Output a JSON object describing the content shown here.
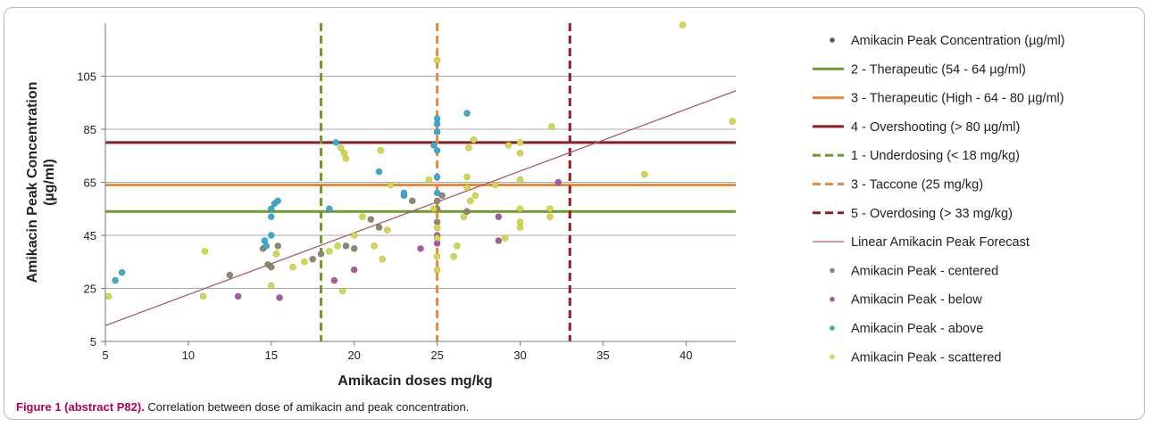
{
  "caption": {
    "label": "Figure 1 (abstract P82).",
    "text": "Correlation between dose of amikacin and peak concentration."
  },
  "chart_data": {
    "type": "scatter",
    "title": "",
    "xlabel": "Amikacin doses mg/kg",
    "ylabel": "Amikacin Peak Concentration (µg/ml)",
    "xlim": [
      5,
      43
    ],
    "ylim": [
      5,
      125
    ],
    "x_ticks": [
      5,
      10,
      15,
      20,
      25,
      30,
      35,
      40
    ],
    "y_ticks": [
      5,
      25,
      45,
      65,
      85,
      105
    ],
    "grid": "horizontal",
    "legend_position": "right",
    "legend": [
      {
        "name": "Amikacin Peak Concentration  (µg/ml)",
        "kind": "marker",
        "color": "#4a5a7a"
      },
      {
        "name": "2 - Therapeutic (54 - 64 µg/ml)",
        "kind": "solid",
        "color": "#6e9a2a"
      },
      {
        "name": "3 - Therapeutic (High - 64 - 80 µg/ml)",
        "kind": "solid",
        "color": "#e98a3c"
      },
      {
        "name": "4 - Overshooting (> 80 µg/ml)",
        "kind": "solid",
        "color": "#8e1e22"
      },
      {
        "name": "1 - Underdosing (< 18 mg/kg)",
        "kind": "dashed",
        "color": "#6e9a2a"
      },
      {
        "name": "3 - Taccone (25 mg/kg)",
        "kind": "dashed",
        "color": "#e98a3c"
      },
      {
        "name": "5 - Overdosing (> 33 mg/kg)",
        "kind": "dashed",
        "color": "#8e1e22"
      },
      {
        "name": "Linear Amikacin Peak Forecast",
        "kind": "thin",
        "color": "#a85a6a"
      },
      {
        "name": "Amikacin Peak - centered",
        "kind": "marker",
        "color": "#8a8a70"
      },
      {
        "name": "Amikacin Peak - below",
        "kind": "marker",
        "color": "#a65aa0"
      },
      {
        "name": "Amikacin Peak - above",
        "kind": "marker",
        "color": "#3fa9c8"
      },
      {
        "name": "Amikacin Peak - scattered",
        "kind": "marker",
        "color": "#d2d84a"
      }
    ],
    "horizontal_lines": [
      {
        "name": "2 - Therapeutic (54 - 64 µg/ml)",
        "y": 54,
        "color": "#6e9a2a"
      },
      {
        "name": "3 - Therapeutic (High - 64 - 80 µg/ml)",
        "y": 64,
        "color": "#e98a3c"
      },
      {
        "name": "4 - Overshooting (> 80 µg/ml)",
        "y": 80,
        "color": "#8e1e22"
      }
    ],
    "vertical_lines": [
      {
        "name": "1 - Underdosing (< 18 mg/kg)",
        "x": 18,
        "color": "#6e9a2a"
      },
      {
        "name": "3 - Taccone (25 mg/kg)",
        "x": 25,
        "color": "#e98a3c"
      },
      {
        "name": "5 - Overdosing (> 33 mg/kg)",
        "x": 33,
        "color": "#8e1e22"
      }
    ],
    "trendline": {
      "name": "Linear Amikacin Peak Forecast",
      "x": [
        5,
        43
      ],
      "y": [
        11,
        99.5
      ],
      "color": "#a85a6a"
    },
    "series": [
      {
        "name": "Amikacin Peak - centered",
        "color": "#8a8a70",
        "points": [
          [
            12.5,
            30
          ],
          [
            14.5,
            40
          ],
          [
            14.8,
            34
          ],
          [
            15,
            33
          ],
          [
            15.4,
            41
          ],
          [
            17.5,
            36
          ],
          [
            18,
            38
          ],
          [
            19.5,
            41
          ],
          [
            20,
            40
          ],
          [
            21,
            51
          ],
          [
            21.5,
            48
          ],
          [
            23.5,
            58
          ],
          [
            25,
            58
          ],
          [
            25,
            50
          ],
          [
            25,
            55
          ],
          [
            25.3,
            60
          ],
          [
            26.8,
            54
          ]
        ]
      },
      {
        "name": "Amikacin Peak - below",
        "color": "#a65aa0",
        "points": [
          [
            13,
            22
          ],
          [
            15.5,
            21.5
          ],
          [
            18.8,
            28
          ],
          [
            20,
            32
          ],
          [
            24,
            40
          ],
          [
            25,
            42
          ],
          [
            25,
            45
          ],
          [
            28.7,
            52
          ],
          [
            28.7,
            43
          ],
          [
            32.3,
            65
          ]
        ]
      },
      {
        "name": "Amikacin Peak - above",
        "color": "#3fa9c8",
        "points": [
          [
            5.6,
            28
          ],
          [
            6,
            31
          ],
          [
            14.6,
            43
          ],
          [
            15,
            45
          ],
          [
            15,
            52
          ],
          [
            15,
            55
          ],
          [
            15.2,
            57
          ],
          [
            15.4,
            58
          ],
          [
            14.7,
            41
          ],
          [
            18.5,
            55
          ],
          [
            18.9,
            80
          ],
          [
            21.5,
            69
          ],
          [
            23,
            60
          ],
          [
            23,
            61
          ],
          [
            24.8,
            79
          ],
          [
            25,
            84
          ],
          [
            25,
            87
          ],
          [
            25,
            89
          ],
          [
            25,
            77
          ],
          [
            25,
            67
          ],
          [
            25,
            61
          ],
          [
            26.8,
            91
          ]
        ]
      },
      {
        "name": "Amikacin Peak - scattered",
        "color": "#d2d84a",
        "points": [
          [
            5.2,
            22
          ],
          [
            10.9,
            22
          ],
          [
            11,
            39
          ],
          [
            15,
            26
          ],
          [
            15.3,
            38
          ],
          [
            16.3,
            33
          ],
          [
            17,
            35
          ],
          [
            18.5,
            39
          ],
          [
            19,
            41
          ],
          [
            19.2,
            78
          ],
          [
            19.4,
            76
          ],
          [
            19.5,
            74
          ],
          [
            19.3,
            24
          ],
          [
            20,
            45
          ],
          [
            20.5,
            52
          ],
          [
            21.2,
            41
          ],
          [
            21.6,
            77
          ],
          [
            21.7,
            36
          ],
          [
            22,
            47
          ],
          [
            22.2,
            64
          ],
          [
            24.5,
            66
          ],
          [
            24.8,
            55
          ],
          [
            25,
            32
          ],
          [
            25,
            37
          ],
          [
            25,
            44
          ],
          [
            25,
            48
          ],
          [
            25,
            111
          ],
          [
            26,
            37
          ],
          [
            26.2,
            41
          ],
          [
            26.6,
            52
          ],
          [
            26.8,
            63
          ],
          [
            26.8,
            67
          ],
          [
            26.9,
            78
          ],
          [
            27,
            58
          ],
          [
            27.2,
            81
          ],
          [
            27.3,
            60
          ],
          [
            28.5,
            64
          ],
          [
            29.1,
            44
          ],
          [
            29.3,
            79
          ],
          [
            30,
            80
          ],
          [
            30,
            76
          ],
          [
            30,
            55
          ],
          [
            30,
            50
          ],
          [
            30,
            48
          ],
          [
            30,
            66
          ],
          [
            31.8,
            55
          ],
          [
            31.8,
            52
          ],
          [
            31.9,
            86
          ],
          [
            37.5,
            68
          ],
          [
            39.8,
            125
          ],
          [
            42.8,
            88
          ]
        ]
      }
    ]
  }
}
